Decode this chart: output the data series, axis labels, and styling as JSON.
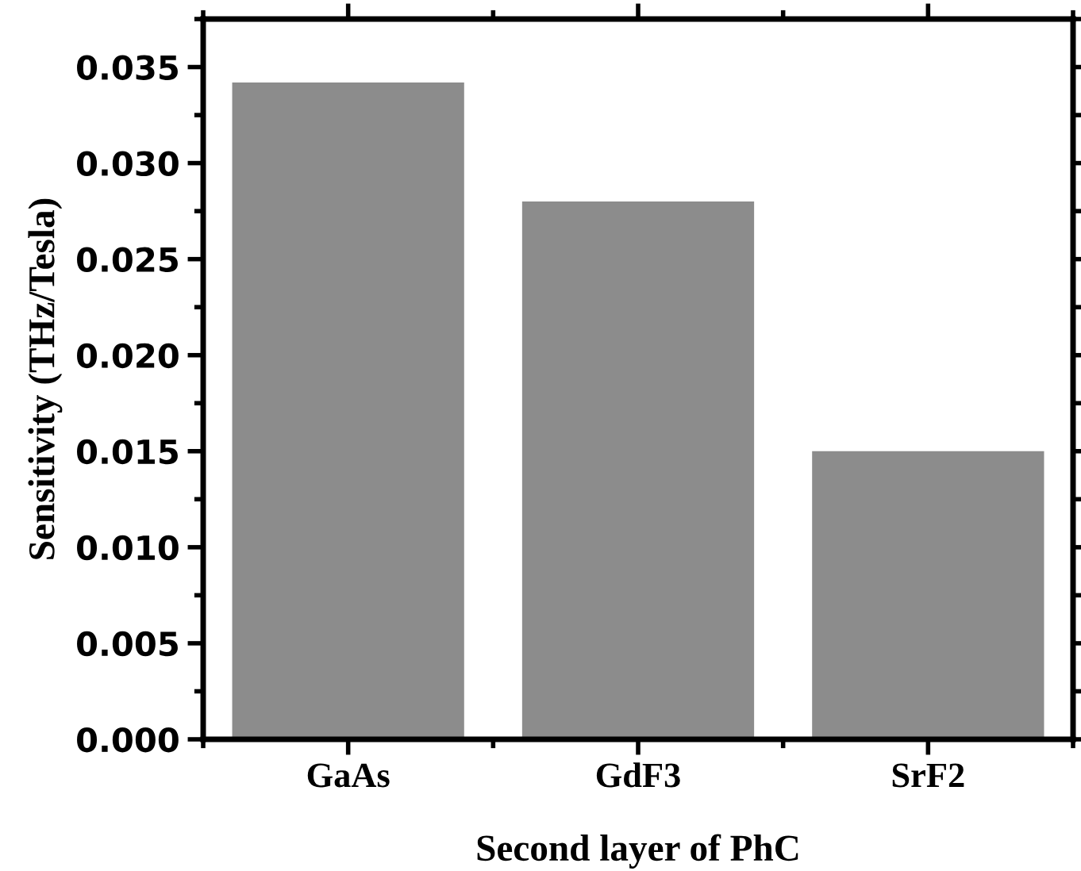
{
  "chart_data": {
    "type": "bar",
    "xlabel": "Second layer of PhC",
    "ylabel": "Sensitivity (THz/Tesla)",
    "categories": [
      "GaAs",
      "GdF3",
      "SrF2"
    ],
    "values": [
      0.0342,
      0.028,
      0.015
    ],
    "color": "#8c8c8c",
    "ylim": [
      0,
      0.0375
    ],
    "yticks": [
      {
        "value": 0,
        "label": "0.000"
      },
      0.005,
      {
        "value": 0.01,
        "label": "0.010"
      },
      0.015,
      {
        "value": 0.02,
        "label": "0.020"
      },
      0.025,
      {
        "value": 0.03,
        "label": "0.030"
      },
      0.035
    ],
    "grid": false,
    "legend": false
  }
}
